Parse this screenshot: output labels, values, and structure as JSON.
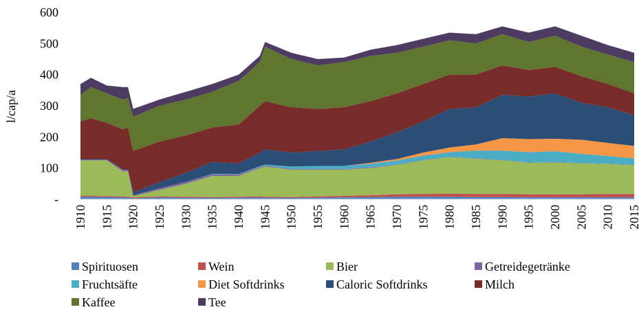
{
  "chart_data": {
    "type": "stacked-area",
    "y_label": "l/cap/a",
    "x": [
      1910,
      1912,
      1915,
      1918,
      1919,
      1920,
      1925,
      1930,
      1935,
      1940,
      1944,
      1945,
      1950,
      1955,
      1960,
      1965,
      1970,
      1975,
      1980,
      1985,
      1990,
      1995,
      2000,
      2005,
      2010,
      2015
    ],
    "xlim": [
      1910,
      2015
    ],
    "xticks": [
      1910,
      1915,
      1920,
      1925,
      1930,
      1935,
      1940,
      1945,
      1950,
      1955,
      1960,
      1965,
      1970,
      1975,
      1980,
      1985,
      1990,
      1995,
      2000,
      2005,
      2010,
      2015
    ],
    "ylim": [
      0,
      600
    ],
    "yticks": [
      {
        "value": 0,
        "label": "-"
      },
      100,
      200,
      300,
      400,
      500,
      600
    ],
    "series": [
      {
        "name": "Spirituosen",
        "color": "#4f81bd",
        "values": [
          8,
          8,
          7,
          6,
          5,
          3,
          6,
          5,
          4,
          5,
          6,
          5,
          4,
          5,
          6,
          7,
          8,
          8,
          8,
          7,
          7,
          6,
          6,
          6,
          6,
          6
        ]
      },
      {
        "name": "Wein",
        "color": "#c0504d",
        "values": [
          3,
          3,
          3,
          3,
          3,
          3,
          3,
          3,
          3,
          3,
          3,
          3,
          3,
          4,
          5,
          6,
          8,
          9,
          10,
          10,
          10,
          10,
          10,
          10,
          11,
          11
        ]
      },
      {
        "name": "Bier",
        "color": "#9bbb59",
        "values": [
          114,
          114,
          115,
          81,
          82,
          4,
          21,
          42,
          68,
          67,
          91,
          97,
          88,
          86,
          84,
          87,
          94,
          108,
          117,
          113,
          108,
          101,
          102,
          99,
          96,
          93
        ]
      },
      {
        "name": "Getreidegetränke",
        "color": "#8064a2",
        "values": [
          2,
          2,
          2,
          4,
          4,
          3,
          5,
          6,
          5,
          4,
          3,
          3,
          2,
          2,
          2,
          2,
          1,
          1,
          1,
          1,
          1,
          1,
          1,
          1,
          1,
          1
        ]
      },
      {
        "name": "Fruchtsäfte",
        "color": "#4bacc6",
        "values": [
          0,
          0,
          0,
          0,
          0,
          0,
          0,
          0,
          1,
          2,
          3,
          3,
          8,
          10,
          10,
          12,
          13,
          14,
          15,
          25,
          30,
          33,
          35,
          30,
          25,
          20
        ]
      },
      {
        "name": "Diet Softdrinks",
        "color": "#f79646",
        "values": [
          0,
          0,
          0,
          0,
          0,
          0,
          0,
          0,
          0,
          0,
          0,
          0,
          0,
          0,
          0,
          3,
          5,
          10,
          15,
          20,
          40,
          42,
          40,
          45,
          42,
          40
        ]
      },
      {
        "name": "Caloric Softdrinks",
        "color": "#2c4d75",
        "values": [
          2,
          2,
          2,
          2,
          2,
          10,
          20,
          29,
          39,
          34,
          44,
          49,
          45,
          48,
          53,
          68,
          86,
          100,
          124,
          119,
          139,
          137,
          146,
          119,
          114,
          99
        ]
      },
      {
        "name": "Milch",
        "color": "#772c2a",
        "values": [
          121,
          131,
          116,
          129,
          134,
          132,
          130,
          120,
          110,
          125,
          150,
          155,
          145,
          135,
          135,
          130,
          125,
          120,
          110,
          105,
          95,
          85,
          85,
          85,
          75,
          70
        ]
      },
      {
        "name": "Kaffee",
        "color": "#5f7530",
        "values": [
          85,
          100,
          95,
          95,
          95,
          110,
          115,
          115,
          115,
          140,
          140,
          175,
          155,
          140,
          145,
          145,
          130,
          120,
          110,
          100,
          100,
          90,
          100,
          95,
          95,
          100
        ]
      },
      {
        "name": "Tee",
        "color": "#4d3b62",
        "values": [
          35,
          30,
          25,
          40,
          35,
          25,
          20,
          25,
          25,
          20,
          20,
          15,
          20,
          20,
          15,
          20,
          25,
          25,
          25,
          30,
          25,
          30,
          30,
          35,
          30,
          30
        ]
      }
    ]
  }
}
